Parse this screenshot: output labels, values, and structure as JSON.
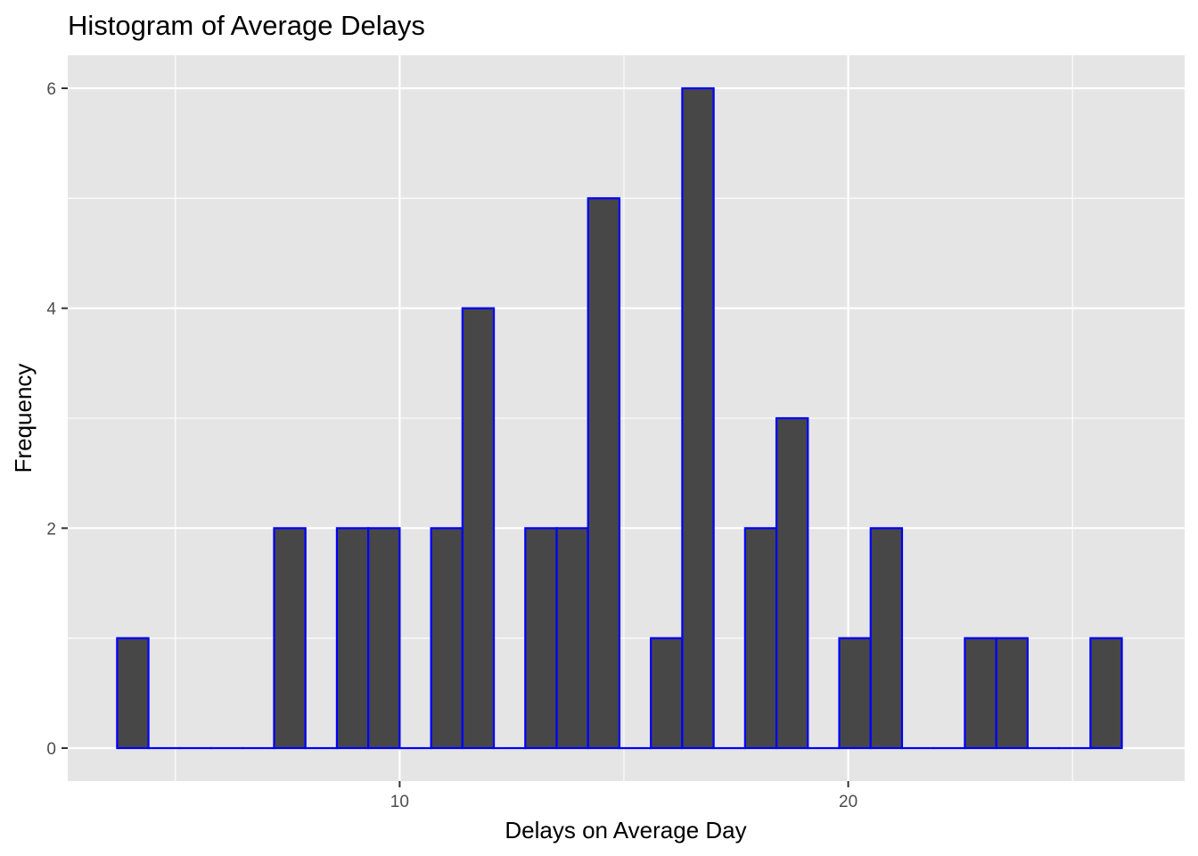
{
  "chart_data": {
    "type": "bar",
    "title": "Histogram of Average Delays",
    "xlabel": "Delays on Average Day",
    "ylabel": "Frequency",
    "bin_width": 0.7,
    "first_bin_start": 3.7,
    "values": [
      1,
      0,
      0,
      0,
      0,
      2,
      0,
      2,
      2,
      0,
      2,
      4,
      0,
      2,
      2,
      5,
      0,
      1,
      6,
      0,
      2,
      3,
      0,
      1,
      2,
      0,
      0,
      1,
      1,
      0,
      0,
      1
    ],
    "xlim": [
      2.6,
      27.5
    ],
    "ylim": [
      -0.3,
      6.3
    ],
    "x_ticks": [
      10,
      20
    ],
    "y_ticks": [
      0,
      2,
      4,
      6
    ],
    "x_minor_ticks": [
      5,
      15,
      25
    ],
    "y_minor_ticks": [
      1,
      3,
      5
    ],
    "grid": true,
    "legend": "none",
    "colors": {
      "panel_background": "#e5e5e5",
      "grid": "#ffffff",
      "bar_fill": "#474747",
      "bar_outline": "#0000ff"
    }
  }
}
